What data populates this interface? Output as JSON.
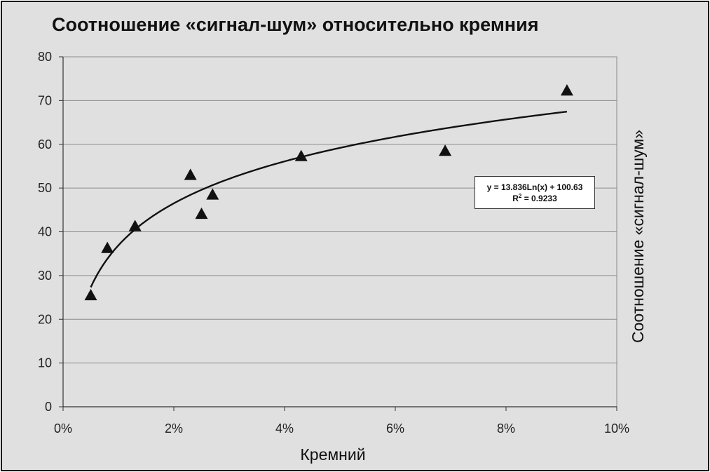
{
  "chart_data": {
    "type": "scatter",
    "title": "Соотношение «сигнал-шум» относительно кремния",
    "xlabel": "Кремний",
    "ylabel": "Соотношение «сигнал-шум»",
    "xlim": [
      0,
      0.1
    ],
    "ylim": [
      0,
      80
    ],
    "x_ticks": [
      0,
      0.02,
      0.04,
      0.06,
      0.08,
      0.1
    ],
    "x_tick_labels": [
      "0%",
      "2%",
      "4%",
      "6%",
      "8%",
      "10%"
    ],
    "y_ticks": [
      0,
      10,
      20,
      30,
      40,
      50,
      60,
      70,
      80
    ],
    "y_tick_labels": [
      "0",
      "10",
      "20",
      "30",
      "40",
      "50",
      "60",
      "70",
      "80"
    ],
    "grid": "horizontal",
    "marker": "triangle",
    "marker_color": "#111111",
    "plot_background": "#e0e0e0",
    "points": [
      {
        "x": 0.005,
        "y": 25.5
      },
      {
        "x": 0.008,
        "y": 36.3
      },
      {
        "x": 0.013,
        "y": 41.3
      },
      {
        "x": 0.023,
        "y": 53.0
      },
      {
        "x": 0.025,
        "y": 44.1
      },
      {
        "x": 0.027,
        "y": 48.5
      },
      {
        "x": 0.043,
        "y": 57.3
      },
      {
        "x": 0.069,
        "y": 58.5
      },
      {
        "x": 0.091,
        "y": 72.3
      }
    ],
    "trendline": {
      "type": "logarithmic",
      "a": 13.836,
      "b": 100.63,
      "x_range": [
        0.005,
        0.091
      ],
      "equation_text": "y = 13.836Ln(x) + 100.63",
      "r2_prefix": "R",
      "r2_sup": "2",
      "r2_value": " = 0.9233"
    }
  }
}
